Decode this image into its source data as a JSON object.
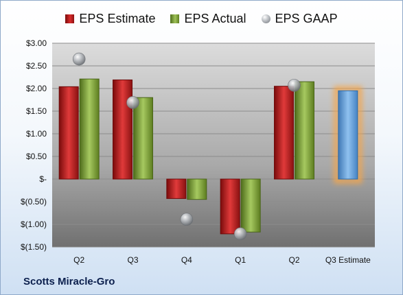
{
  "company": "Scotts Miracle-Gro",
  "chart_data": {
    "type": "bar",
    "categories": [
      "Q2",
      "Q3",
      "Q4",
      "Q1",
      "Q2",
      "Q3 Estimate"
    ],
    "series": [
      {
        "name": "EPS Estimate",
        "values": [
          2.04,
          2.19,
          -0.43,
          -1.21,
          2.05,
          null
        ],
        "color": "#c62828"
      },
      {
        "name": "EPS Actual",
        "values": [
          2.21,
          1.8,
          -0.45,
          -1.17,
          2.15,
          null
        ],
        "color": "#8db84a"
      },
      {
        "name": "EPS GAAP",
        "values": [
          2.65,
          1.69,
          -0.89,
          -1.21,
          2.07,
          null
        ],
        "color": "#9aa0a6"
      }
    ],
    "forecast": {
      "category": "Q3 Estimate",
      "value": 1.95,
      "color": "#5b9bd5",
      "glow": "#f5a54a"
    },
    "ylim": [
      -1.5,
      3.0
    ],
    "yticks": [
      {
        "v": 3.0,
        "label": "$3.00"
      },
      {
        "v": 2.5,
        "label": "$2.50"
      },
      {
        "v": 2.0,
        "label": "$2.00"
      },
      {
        "v": 1.5,
        "label": "$1.50"
      },
      {
        "v": 1.0,
        "label": "$1.00"
      },
      {
        "v": 0.5,
        "label": "$0.50"
      },
      {
        "v": 0.0,
        "label": "$-"
      },
      {
        "v": -0.5,
        "label": "$(0.50)"
      },
      {
        "v": -1.0,
        "label": "$(1.00)"
      },
      {
        "v": -1.5,
        "label": "$(1.50)"
      }
    ],
    "legend_position": "top",
    "grid": true
  }
}
